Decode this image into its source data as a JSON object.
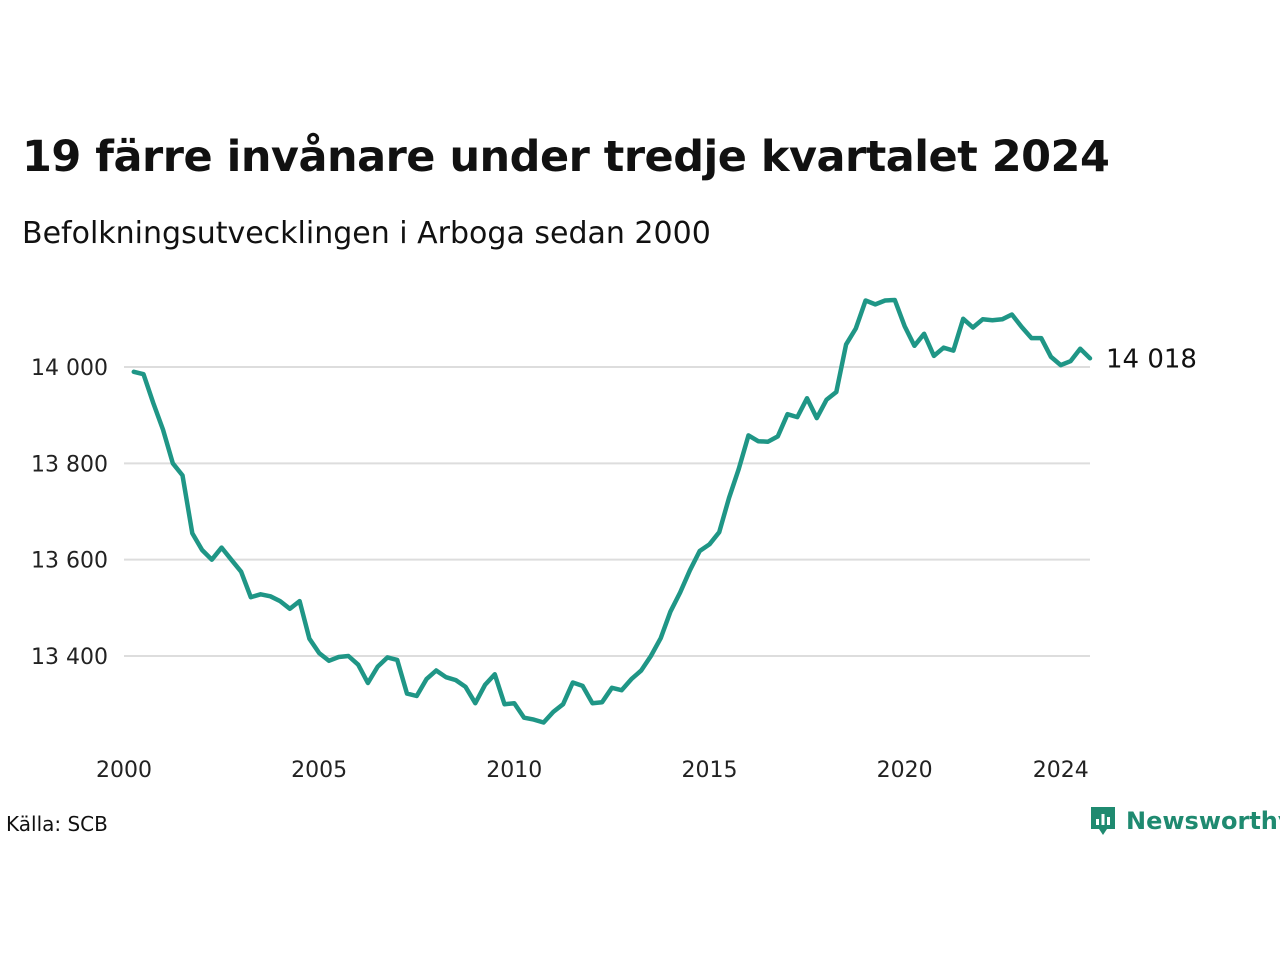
{
  "title": "19 färre invånare under tredje kvartalet 2024",
  "subtitle": "Befolkningsutvecklingen i Arboga sedan 2000",
  "source": "Källa: SCB",
  "brand": "Newsworthy",
  "colors": {
    "line": "#1f9686",
    "grid": "#dddddd",
    "brand": "#1f8a70"
  },
  "chart_data": {
    "type": "line",
    "ylim": [
      13200,
      14200
    ],
    "yticks": [
      13400,
      13600,
      13800,
      14000
    ],
    "ytick_labels": [
      "13 400",
      "13 600",
      "13 800",
      "14 000"
    ],
    "xlim": [
      2000,
      2024.75
    ],
    "xticks": [
      2000,
      2005,
      2010,
      2015,
      2020,
      2024
    ],
    "xtick_labels": [
      "2000",
      "2005",
      "2010",
      "2015",
      "2020",
      "2024"
    ],
    "end_label": "14 018",
    "grid": true,
    "series": [
      {
        "x": [
          2000.25,
          2000.5,
          2000.75,
          2001,
          2001.25,
          2001.5,
          2001.75,
          2002,
          2002.25,
          2002.5,
          2002.75,
          2003,
          2003.25,
          2003.5,
          2003.75,
          2004,
          2004.25,
          2004.5,
          2004.75,
          2005,
          2005.25,
          2005.5,
          2005.75,
          2006,
          2006.25,
          2006.5,
          2006.75,
          2007,
          2007.25,
          2007.5,
          2007.75,
          2008,
          2008.25,
          2008.5,
          2008.75,
          2009,
          2009.25,
          2009.5,
          2009.75,
          2010,
          2010.25,
          2010.5,
          2010.75,
          2011,
          2011.25,
          2011.5,
          2011.75,
          2012,
          2012.25,
          2012.5,
          2012.75,
          2013,
          2013.25,
          2013.5,
          2013.75,
          2014,
          2014.25,
          2014.5,
          2014.75,
          2015,
          2015.25,
          2015.5,
          2015.75,
          2016,
          2016.25,
          2016.5,
          2016.75,
          2017,
          2017.25,
          2017.5,
          2017.75,
          2018,
          2018.25,
          2018.5,
          2018.75,
          2019,
          2019.25,
          2019.5,
          2019.75,
          2020,
          2020.25,
          2020.5,
          2020.75,
          2021,
          2021.25,
          2021.5,
          2021.75,
          2022,
          2022.25,
          2022.5,
          2022.75,
          2023,
          2023.25,
          2023.5,
          2023.75,
          2024,
          2024.25,
          2024.5,
          2024.75
        ],
        "y": [
          13990,
          13985,
          13925,
          13870,
          13800,
          13775,
          13655,
          13620,
          13600,
          13625,
          13600,
          13575,
          13522,
          13528,
          13524,
          13514,
          13498,
          13514,
          13436,
          13406,
          13390,
          13398,
          13400,
          13382,
          13344,
          13378,
          13397,
          13392,
          13322,
          13317,
          13352,
          13370,
          13356,
          13350,
          13336,
          13302,
          13340,
          13362,
          13300,
          13302,
          13272,
          13268,
          13262,
          13284,
          13300,
          13345,
          13338,
          13302,
          13304,
          13334,
          13329,
          13352,
          13370,
          13400,
          13437,
          13492,
          13532,
          13578,
          13618,
          13632,
          13657,
          13728,
          13788,
          13858,
          13846,
          13845,
          13856,
          13902,
          13896,
          13935,
          13894,
          13932,
          13948,
          14047,
          14080,
          14138,
          14130,
          14138,
          14139,
          14085,
          14044,
          14069,
          14023,
          14040,
          14034,
          14100,
          14082,
          14099,
          14097,
          14099,
          14109,
          14083,
          14060,
          14060,
          14021,
          14004,
          14012,
          14038,
          14018
        ]
      }
    ]
  }
}
